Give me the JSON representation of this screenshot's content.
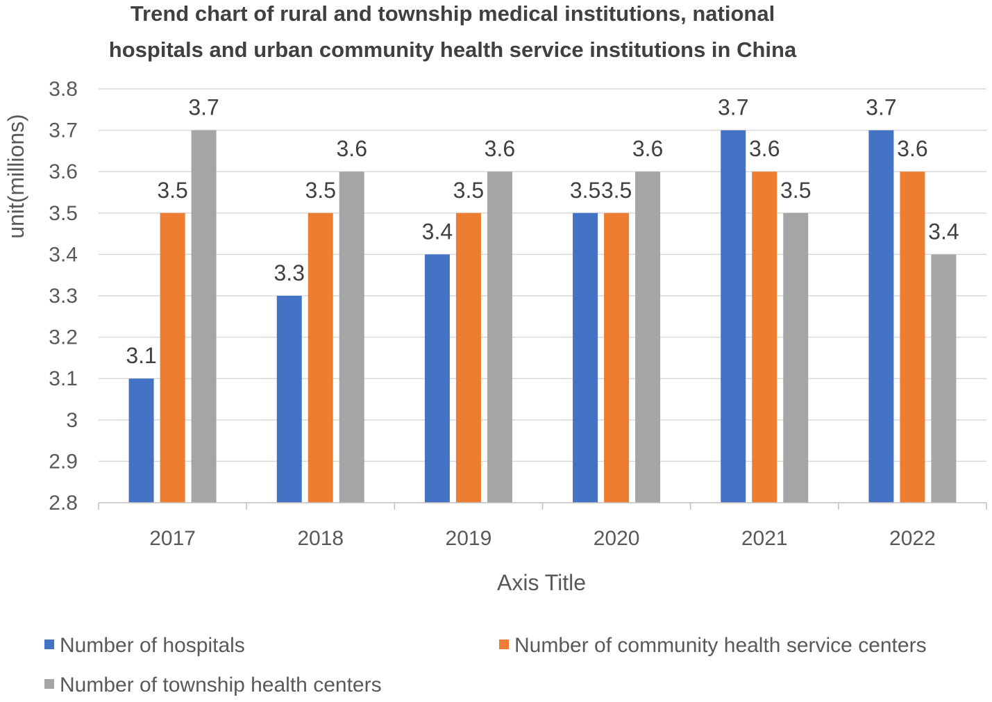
{
  "chart_data": {
    "type": "bar",
    "title_lines": [
      "Trend chart of rural and township medical institutions, national",
      "hospitals and urban community health service institutions in China"
    ],
    "xlabel": "Axis Title",
    "ylabel": "unit(millions)",
    "categories": [
      "2017",
      "2018",
      "2019",
      "2020",
      "2021",
      "2022"
    ],
    "ylim": [
      2.8,
      3.8
    ],
    "yticks": [
      {
        "value": 2.8,
        "label": "2.8"
      },
      {
        "value": 2.9,
        "label": "2.9"
      },
      {
        "value": 3.0,
        "label": "3"
      },
      {
        "value": 3.1,
        "label": "3.1"
      },
      {
        "value": 3.2,
        "label": "3.2"
      },
      {
        "value": 3.3,
        "label": "3.3"
      },
      {
        "value": 3.4,
        "label": "3.4"
      },
      {
        "value": 3.5,
        "label": "3.5"
      },
      {
        "value": 3.6,
        "label": "3.6"
      },
      {
        "value": 3.7,
        "label": "3.7"
      },
      {
        "value": 3.8,
        "label": "3.8"
      }
    ],
    "series": [
      {
        "name": "Number of hospitals",
        "color": "#4472C4",
        "values": [
          3.1,
          3.3,
          3.4,
          3.5,
          3.7,
          3.7
        ],
        "labels": [
          "3.1",
          "3.3",
          "3.4",
          "3.5",
          "3.7",
          "3.7"
        ]
      },
      {
        "name": "Number of community health service centers",
        "color": "#ED7D31",
        "values": [
          3.5,
          3.5,
          3.5,
          3.5,
          3.6,
          3.6
        ],
        "labels": [
          "3.5",
          "3.5",
          "3.5",
          "3.5",
          "3.6",
          "3.6"
        ]
      },
      {
        "name": "Number of township health centers",
        "color": "#A5A5A5",
        "values": [
          3.7,
          3.6,
          3.6,
          3.6,
          3.5,
          3.4
        ],
        "labels": [
          "3.7",
          "3.6",
          "3.6",
          "3.6",
          "3.5",
          "3.4"
        ]
      }
    ],
    "grid": true,
    "legend_position": "bottom"
  }
}
